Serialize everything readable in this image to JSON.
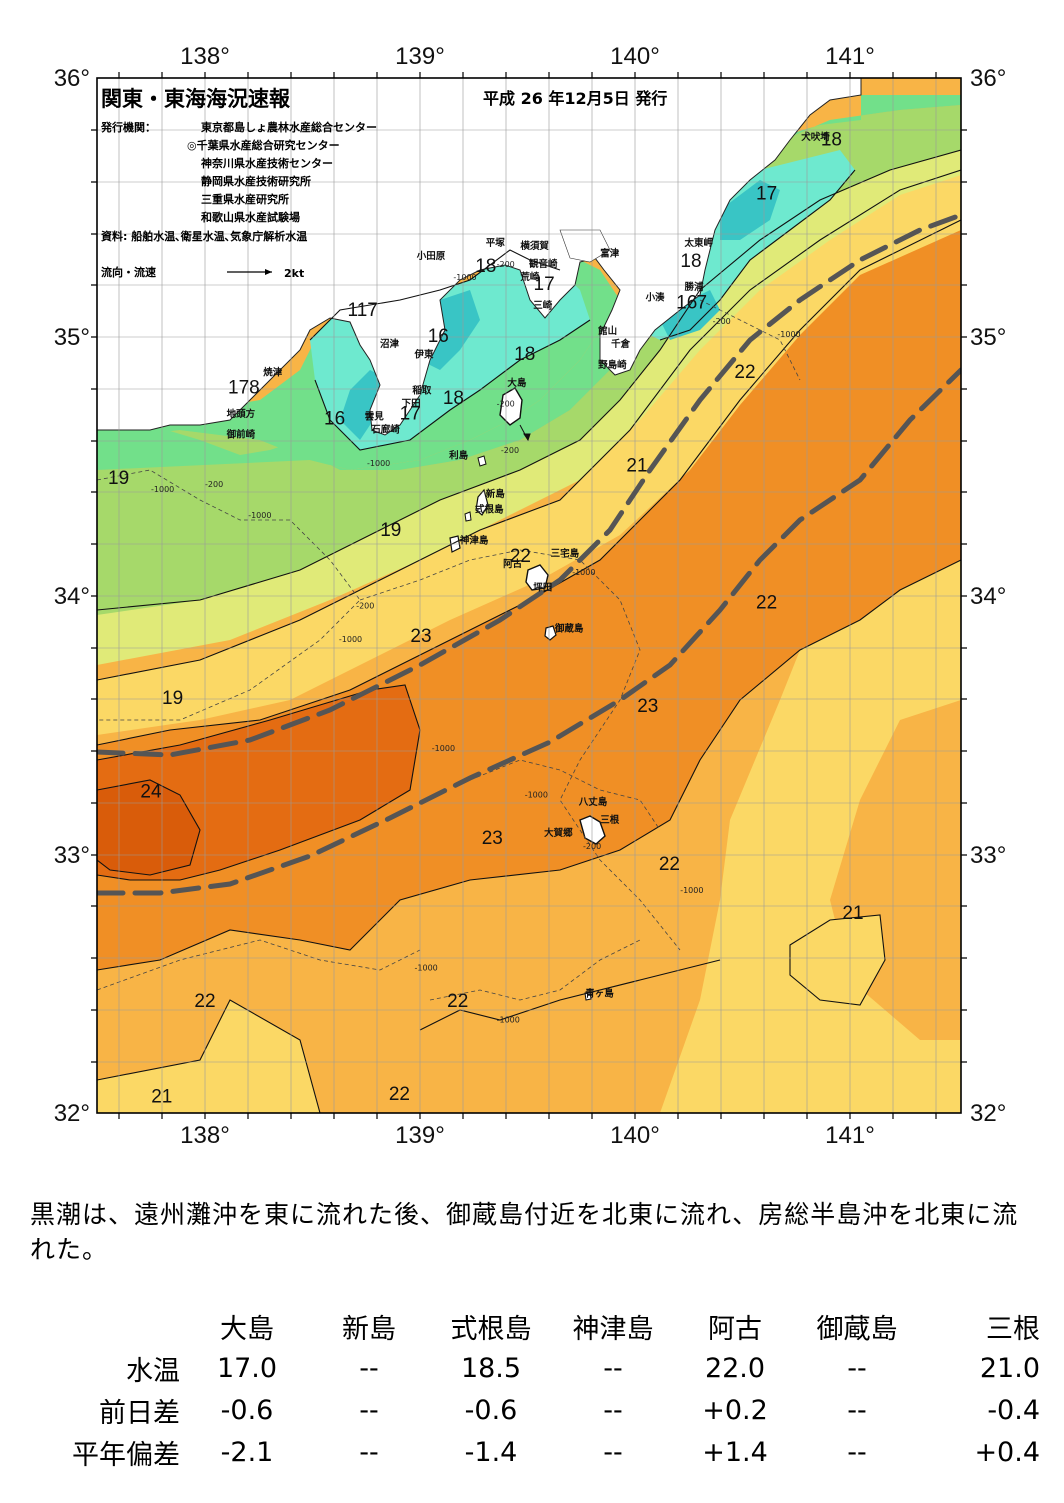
{
  "header": {
    "title": "関東・東海海況速報",
    "date": "平成 26 年12月5日 発行",
    "publisher_label": "発行機関：",
    "publishers": [
      "東京都島しょ農林水産総合センター",
      "◎千葉県水産総合研究センター",
      "神奈川県水産技術センター",
      "静岡県水産技術研究所",
      "三重県水産研究所",
      "和歌山県水産試験場"
    ],
    "sources": "資料: 船舶水温､衛星水温､気象庁解析水温",
    "flow_legend_label": "流向・流速",
    "flow_legend_unit": "2kt"
  },
  "axes": {
    "lon_labels": [
      "138°",
      "139°",
      "140°",
      "141°"
    ],
    "lat_labels": [
      "36°",
      "35°",
      "34°",
      "33°",
      "32°"
    ]
  },
  "colors": {
    "t16": "#39c5c5",
    "t17": "#6ee9cf",
    "t18": "#72e08a",
    "t19": "#a6d96a",
    "t20": "#e0ea78",
    "t21": "#fbd865",
    "t22": "#f8b446",
    "t23": "#f08f25",
    "t24": "#e46c12",
    "t25": "#d95c0a",
    "land": "#ffffff",
    "kuroshio_axis": "#555555"
  },
  "isotherm_labels": [
    {
      "text": "18",
      "lon": 140.9,
      "lat": 35.74
    },
    {
      "text": "17",
      "lon": 140.6,
      "lat": 35.53
    },
    {
      "text": "18",
      "lon": 140.25,
      "lat": 35.27
    },
    {
      "text": "16",
      "lon": 140.23,
      "lat": 35.11
    },
    {
      "text": "7",
      "lon": 140.3,
      "lat": 35.11
    },
    {
      "text": "18",
      "lon": 139.3,
      "lat": 35.25
    },
    {
      "text": "17",
      "lon": 139.57,
      "lat": 35.18
    },
    {
      "text": "117",
      "lon": 138.73,
      "lat": 35.08
    },
    {
      "text": "16",
      "lon": 139.08,
      "lat": 34.98
    },
    {
      "text": "18",
      "lon": 139.48,
      "lat": 34.91
    },
    {
      "text": "178",
      "lon": 138.18,
      "lat": 34.78
    },
    {
      "text": "18",
      "lon": 139.15,
      "lat": 34.74
    },
    {
      "text": "17",
      "lon": 138.95,
      "lat": 34.68
    },
    {
      "text": "16",
      "lon": 138.6,
      "lat": 34.66
    },
    {
      "text": "22",
      "lon": 140.5,
      "lat": 34.84
    },
    {
      "text": "21",
      "lon": 140.0,
      "lat": 34.48
    },
    {
      "text": "19",
      "lon": 137.6,
      "lat": 34.43
    },
    {
      "text": "19",
      "lon": 138.86,
      "lat": 34.23
    },
    {
      "text": "22",
      "lon": 139.46,
      "lat": 34.13
    },
    {
      "text": "22",
      "lon": 140.6,
      "lat": 33.95
    },
    {
      "text": "23",
      "lon": 139.0,
      "lat": 33.82
    },
    {
      "text": "19",
      "lon": 137.85,
      "lat": 33.58
    },
    {
      "text": "23",
      "lon": 140.05,
      "lat": 33.55
    },
    {
      "text": "24",
      "lon": 137.75,
      "lat": 33.22
    },
    {
      "text": "23",
      "lon": 139.33,
      "lat": 33.04
    },
    {
      "text": "22",
      "lon": 140.15,
      "lat": 32.94
    },
    {
      "text": "21",
      "lon": 141.0,
      "lat": 32.75
    },
    {
      "text": "22",
      "lon": 138.0,
      "lat": 32.41
    },
    {
      "text": "22",
      "lon": 139.17,
      "lat": 32.41
    },
    {
      "text": "21",
      "lon": 137.8,
      "lat": 32.04
    },
    {
      "text": "22",
      "lon": 138.9,
      "lat": 32.05
    }
  ],
  "place_labels": [
    {
      "text": "犬吠埼",
      "lon": 140.76,
      "lat": 35.76
    },
    {
      "text": "太東岬",
      "lon": 140.22,
      "lat": 35.35
    },
    {
      "text": "勝浦",
      "lon": 140.22,
      "lat": 35.18
    },
    {
      "text": "小湊",
      "lon": 140.04,
      "lat": 35.14
    },
    {
      "text": "富津",
      "lon": 139.83,
      "lat": 35.31
    },
    {
      "text": "館山",
      "lon": 139.82,
      "lat": 35.01
    },
    {
      "text": "千倉",
      "lon": 139.88,
      "lat": 34.96
    },
    {
      "text": "野島崎",
      "lon": 139.82,
      "lat": 34.88
    },
    {
      "text": "横須賀",
      "lon": 139.46,
      "lat": 35.34
    },
    {
      "text": "観音崎",
      "lon": 139.5,
      "lat": 35.27
    },
    {
      "text": "平塚",
      "lon": 139.3,
      "lat": 35.35
    },
    {
      "text": "小田原",
      "lon": 138.98,
      "lat": 35.3
    },
    {
      "text": "荒崎",
      "lon": 139.46,
      "lat": 35.22
    },
    {
      "text": "三崎",
      "lon": 139.52,
      "lat": 35.11
    },
    {
      "text": "沼津",
      "lon": 138.81,
      "lat": 34.96
    },
    {
      "text": "伊東",
      "lon": 138.97,
      "lat": 34.92
    },
    {
      "text": "焼津",
      "lon": 138.27,
      "lat": 34.85
    },
    {
      "text": "稲取",
      "lon": 138.96,
      "lat": 34.78
    },
    {
      "text": "下田",
      "lon": 138.91,
      "lat": 34.73
    },
    {
      "text": "雲見",
      "lon": 138.74,
      "lat": 34.68
    },
    {
      "text": "石廊崎",
      "lon": 138.77,
      "lat": 34.63
    },
    {
      "text": "地頭方",
      "lon": 138.1,
      "lat": 34.69
    },
    {
      "text": "御前崎",
      "lon": 138.1,
      "lat": 34.61
    },
    {
      "text": "大島",
      "lon": 139.4,
      "lat": 34.81
    },
    {
      "text": "利島",
      "lon": 139.13,
      "lat": 34.53
    },
    {
      "text": "新島",
      "lon": 139.3,
      "lat": 34.38
    },
    {
      "text": "式根島",
      "lon": 139.25,
      "lat": 34.32
    },
    {
      "text": "神津島",
      "lon": 139.18,
      "lat": 34.2
    },
    {
      "text": "三宅島",
      "lon": 139.6,
      "lat": 34.15
    },
    {
      "text": "阿古",
      "lon": 139.38,
      "lat": 34.11
    },
    {
      "text": "坪田",
      "lon": 139.52,
      "lat": 34.02
    },
    {
      "text": "御蔵島",
      "lon": 139.62,
      "lat": 33.86
    },
    {
      "text": "八丈島",
      "lon": 139.73,
      "lat": 33.19
    },
    {
      "text": "三根",
      "lon": 139.83,
      "lat": 33.12
    },
    {
      "text": "大賀郷",
      "lon": 139.57,
      "lat": 33.07
    },
    {
      "text": "青ヶ島",
      "lon": 139.76,
      "lat": 32.45
    }
  ],
  "depth_labels": [
    {
      "text": "-1000",
      "lon": 137.75,
      "lat": 34.4
    },
    {
      "text": "-200",
      "lon": 138.0,
      "lat": 34.42
    },
    {
      "text": "-1000",
      "lon": 138.2,
      "lat": 34.3
    },
    {
      "text": "-1000",
      "lon": 138.75,
      "lat": 34.5
    },
    {
      "text": "-1000",
      "lon": 139.15,
      "lat": 35.22
    },
    {
      "text": "-200",
      "lon": 139.35,
      "lat": 35.27
    },
    {
      "text": "-200",
      "lon": 139.35,
      "lat": 34.73
    },
    {
      "text": "-200",
      "lon": 139.37,
      "lat": 34.55
    },
    {
      "text": "-1000",
      "lon": 139.7,
      "lat": 34.08
    },
    {
      "text": "-200",
      "lon": 138.7,
      "lat": 33.95
    },
    {
      "text": "-1000",
      "lon": 138.62,
      "lat": 33.82
    },
    {
      "text": "-1000",
      "lon": 140.65,
      "lat": 35.0
    },
    {
      "text": "-200",
      "lon": 140.35,
      "lat": 35.05
    },
    {
      "text": "-1000",
      "lon": 139.05,
      "lat": 33.4
    },
    {
      "text": "-1000",
      "lon": 139.48,
      "lat": 33.22
    },
    {
      "text": "-200",
      "lon": 139.75,
      "lat": 33.02
    },
    {
      "text": "-1000",
      "lon": 140.2,
      "lat": 32.85
    },
    {
      "text": "-1000",
      "lon": 138.97,
      "lat": 32.55
    },
    {
      "text": "-1000",
      "lon": 139.35,
      "lat": 32.35
    }
  ],
  "summary": "黒潮は、遠州灘沖を東に流れた後、御蔵島付近を北東に流れ、房総半島沖を北東に流れた。",
  "table": {
    "stations": [
      "大島",
      "新島",
      "式根島",
      "神津島",
      "阿古",
      "御蔵島",
      "三根"
    ],
    "rows": [
      {
        "label": "水温",
        "values": [
          "17.0",
          "--",
          "18.5",
          "--",
          "22.0",
          "--",
          "21.0"
        ]
      },
      {
        "label": "前日差",
        "values": [
          "-0.6",
          "--",
          "-0.6",
          "--",
          "+0.2",
          "--",
          "-0.4"
        ]
      },
      {
        "label": "平年偏差",
        "values": [
          "-2.1",
          "--",
          "-1.4",
          "--",
          "+1.4",
          "--",
          "+0.4"
        ]
      }
    ]
  }
}
